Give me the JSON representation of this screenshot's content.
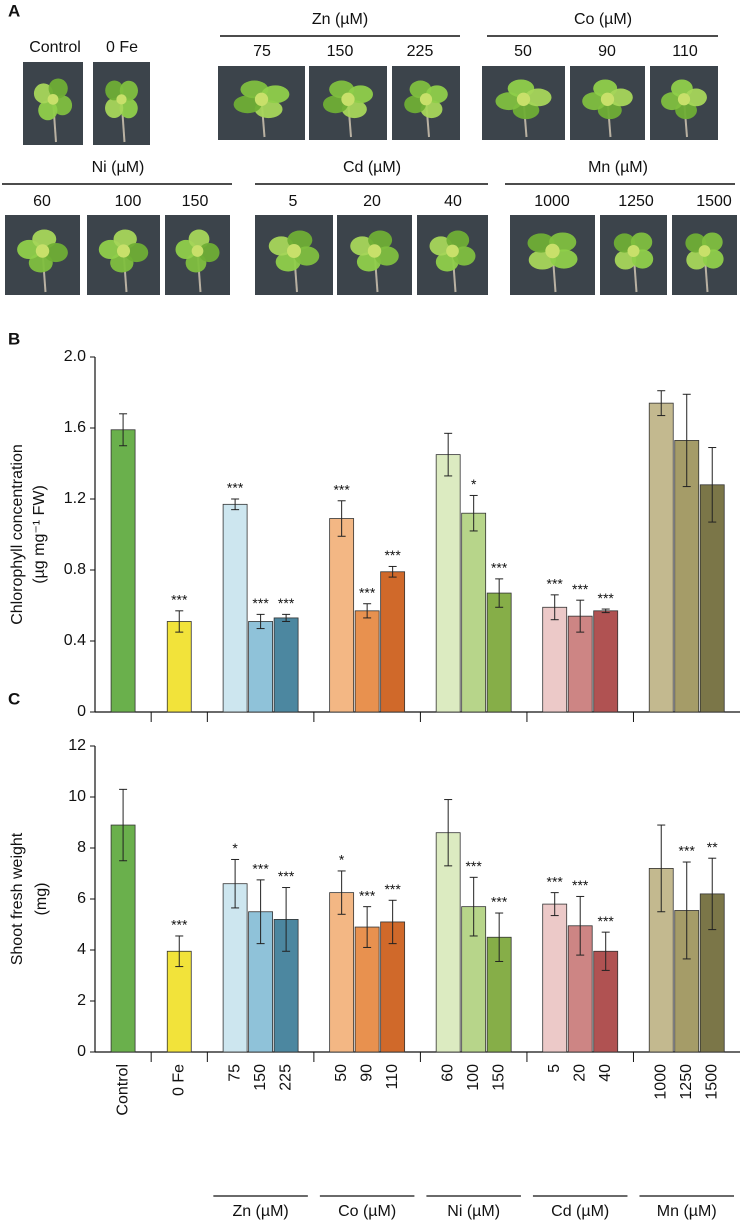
{
  "panel_labels": [
    "A",
    "B",
    "C"
  ],
  "photo_panel": {
    "groups": [
      {
        "labels": [
          "Control"
        ]
      },
      {
        "labels": [
          "0 Fe"
        ]
      },
      {
        "title": "Zn (µM)",
        "labels": [
          "75",
          "150",
          "225"
        ]
      },
      {
        "title": "Co (µM)",
        "labels": [
          "50",
          "90",
          "110"
        ]
      },
      {
        "title": "Ni (µM)",
        "labels": [
          "60",
          "100",
          "150"
        ]
      },
      {
        "title": "Cd (µM)",
        "labels": [
          "5",
          "20",
          "40"
        ]
      },
      {
        "title": "Mn (µM)",
        "labels": [
          "1000",
          "1250",
          "1500"
        ]
      }
    ]
  },
  "chart_data": [
    {
      "type": "bar",
      "ylabel": [
        "Chlorophyll concentration",
        "(µg mg⁻¹ FW)"
      ],
      "ylim": [
        0,
        2
      ],
      "yticks": [
        0,
        0.4,
        0.8,
        1.2,
        1.6,
        {
          "value": 2,
          "label": "2.0"
        }
      ],
      "groups": [
        {
          "values": [
            1.59
          ],
          "errors": [
            0.09
          ],
          "colors": [
            "#6ab04c"
          ],
          "annotations": [
            null
          ]
        },
        {
          "values": [
            0.51
          ],
          "errors": [
            0.06
          ],
          "colors": [
            "#f2e33a"
          ],
          "annotations": [
            "***"
          ]
        },
        {
          "values": [
            1.17,
            0.51,
            0.53
          ],
          "errors": [
            0.03,
            0.04,
            0.02
          ],
          "colors": [
            "#cde6ef",
            "#8fc2d9",
            "#4c87a0"
          ],
          "annotations": [
            "***",
            "***",
            "***"
          ]
        },
        {
          "values": [
            1.09,
            0.57,
            0.79
          ],
          "errors": [
            0.1,
            0.04,
            0.03
          ],
          "colors": [
            "#f3b784",
            "#e8914f",
            "#d0692a"
          ],
          "annotations": [
            "***",
            "***",
            "***"
          ]
        },
        {
          "values": [
            1.45,
            1.12,
            0.67
          ],
          "errors": [
            0.12,
            0.1,
            0.08
          ],
          "colors": [
            "#dcebc1",
            "#b7d58a",
            "#86ae48"
          ],
          "annotations": [
            null,
            "*",
            "***"
          ]
        },
        {
          "values": [
            0.59,
            0.54,
            0.57
          ],
          "errors": [
            0.07,
            0.09,
            0.01
          ],
          "colors": [
            "#ecc9c8",
            "#cd8584",
            "#b05252"
          ],
          "annotations": [
            "***",
            "***",
            "***"
          ]
        },
        {
          "values": [
            1.74,
            1.53,
            1.28
          ],
          "errors": [
            0.07,
            0.26,
            0.21
          ],
          "colors": [
            "#c3b98f",
            "#a59c68",
            "#7b7648"
          ],
          "annotations": [
            null,
            null,
            null
          ]
        }
      ]
    },
    {
      "type": "bar",
      "ylabel": [
        "Shoot fresh weight",
        "(mg)"
      ],
      "ylim": [
        0,
        12
      ],
      "yticks": [
        0,
        2,
        4,
        6,
        8,
        10,
        12
      ],
      "groups": [
        {
          "categories": [
            "Control"
          ],
          "values": [
            8.9
          ],
          "errors": [
            1.4
          ],
          "colors": [
            "#6ab04c"
          ],
          "annotations": [
            null
          ]
        },
        {
          "categories": [
            "0 Fe"
          ],
          "values": [
            3.95
          ],
          "errors": [
            0.6
          ],
          "colors": [
            "#f2e33a"
          ],
          "annotations": [
            "***"
          ]
        },
        {
          "label": "Zn (µM)",
          "categories": [
            "75",
            "150",
            "225"
          ],
          "values": [
            6.6,
            5.5,
            5.2
          ],
          "errors": [
            0.95,
            1.25,
            1.25
          ],
          "colors": [
            "#cde6ef",
            "#8fc2d9",
            "#4c87a0"
          ],
          "annotations": [
            "*",
            "***",
            "***"
          ]
        },
        {
          "label": "Co (µM)",
          "categories": [
            "50",
            "90",
            "110"
          ],
          "values": [
            6.25,
            4.9,
            5.1
          ],
          "errors": [
            0.85,
            0.8,
            0.85
          ],
          "colors": [
            "#f3b784",
            "#e8914f",
            "#d0692a"
          ],
          "annotations": [
            "*",
            "***",
            "***"
          ]
        },
        {
          "label": "Ni (µM)",
          "categories": [
            "60",
            "100",
            "150"
          ],
          "values": [
            8.6,
            5.7,
            4.5
          ],
          "errors": [
            1.3,
            1.15,
            0.95
          ],
          "colors": [
            "#dcebc1",
            "#b7d58a",
            "#86ae48"
          ],
          "annotations": [
            null,
            "***",
            "***"
          ]
        },
        {
          "label": "Cd (µM)",
          "categories": [
            "5",
            "20",
            "40"
          ],
          "values": [
            5.8,
            4.95,
            3.95
          ],
          "errors": [
            0.45,
            1.15,
            0.75
          ],
          "colors": [
            "#ecc9c8",
            "#cd8584",
            "#b05252"
          ],
          "annotations": [
            "***",
            "***",
            "***"
          ]
        },
        {
          "label": "Mn (µM)",
          "categories": [
            "1000",
            "1250",
            "1500"
          ],
          "values": [
            7.2,
            5.55,
            6.2
          ],
          "errors": [
            1.7,
            1.9,
            1.4
          ],
          "colors": [
            "#c3b98f",
            "#a59c68",
            "#7b7648"
          ],
          "annotations": [
            null,
            "***",
            "**"
          ]
        }
      ]
    }
  ]
}
